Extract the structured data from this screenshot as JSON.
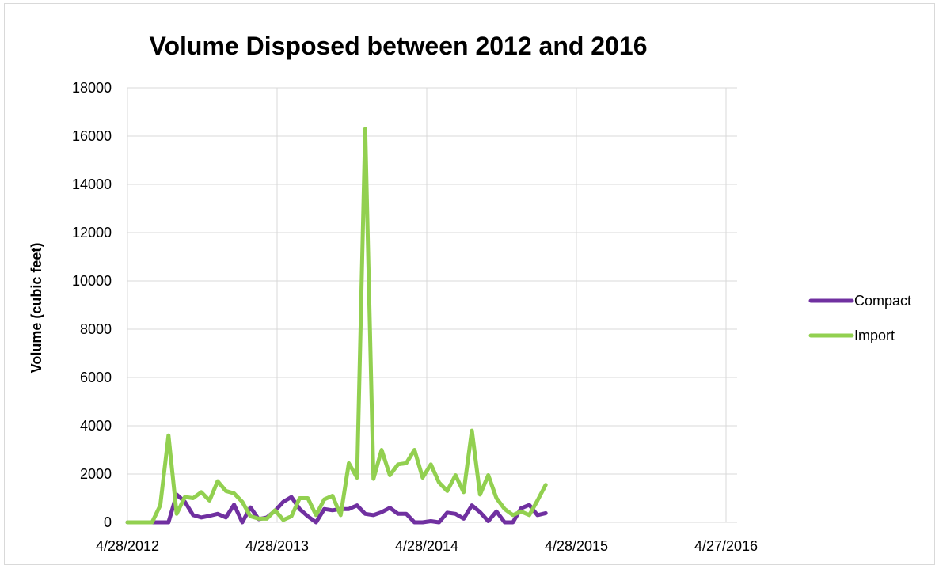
{
  "chart_data": {
    "type": "line",
    "title": "Volume Disposed between 2012 and 2016",
    "xlabel": "",
    "ylabel": "Volume (cubic feet)",
    "ylim": [
      0,
      18000
    ],
    "yticks": [
      0,
      2000,
      4000,
      6000,
      8000,
      10000,
      12000,
      14000,
      16000,
      18000
    ],
    "xlim": [
      "2012-04-28",
      "2016-05-24"
    ],
    "xtick_dates": [
      "2012-04-28",
      "2013-04-28",
      "2014-04-28",
      "2015-04-28",
      "2016-04-27"
    ],
    "xtick_labels": [
      "4/28/2012",
      "4/28/2013",
      "4/28/2014",
      "4/28/2015",
      "4/27/2016"
    ],
    "grid": true,
    "legend": "right",
    "x": [
      "2012-04-28",
      "2012-05-18",
      "2012-06-07",
      "2012-06-27",
      "2012-07-17",
      "2012-08-06",
      "2012-08-26",
      "2012-09-15",
      "2012-10-05",
      "2012-10-25",
      "2012-11-14",
      "2012-12-04",
      "2012-12-24",
      "2013-01-13",
      "2013-02-02",
      "2013-02-22",
      "2013-03-14",
      "2013-04-03",
      "2013-04-23",
      "2013-05-13",
      "2013-06-02",
      "2013-06-22",
      "2013-07-12",
      "2013-08-01",
      "2013-08-21",
      "2013-09-10",
      "2013-09-30",
      "2013-10-20",
      "2013-11-09",
      "2013-11-29",
      "2013-12-19",
      "2014-01-08",
      "2014-01-28",
      "2014-02-17",
      "2014-03-09",
      "2014-03-29",
      "2014-04-18",
      "2014-05-08",
      "2014-05-28",
      "2014-06-17",
      "2014-07-07",
      "2014-07-27",
      "2014-08-16",
      "2014-09-05",
      "2014-09-25",
      "2014-10-15",
      "2014-11-04",
      "2014-11-24",
      "2014-12-14",
      "2015-01-03",
      "2015-01-23",
      "2015-02-12",
      "2015-03-04",
      "2015-03-24",
      "2015-04-13",
      "2015-05-03",
      "2015-05-23",
      "2015-06-12",
      "2015-07-02",
      "2015-07-22",
      "2015-08-11",
      "2015-08-31",
      "2015-09-20",
      "2015-10-10",
      "2015-10-30",
      "2015-11-19",
      "2015-12-09",
      "2015-12-29",
      "2016-01-18",
      "2016-02-07",
      "2016-02-27",
      "2016-03-18",
      "2016-04-07",
      "2016-04-27",
      "2016-05-17"
    ],
    "series": [
      {
        "name": "Compact",
        "color": "#7030a0",
        "values": [
          0,
          0,
          0,
          0,
          0,
          0,
          1150,
          850,
          300,
          200,
          270,
          350,
          200,
          730,
          0,
          620,
          130,
          200,
          480,
          850,
          1050,
          550,
          250,
          0,
          550,
          500,
          550,
          550,
          700,
          350,
          300,
          420,
          600,
          350,
          350,
          0,
          0,
          50,
          0,
          400,
          350,
          150,
          700,
          420,
          50,
          450,
          0,
          0,
          580,
          720,
          300,
          380,
          null,
          null,
          null,
          null,
          null,
          null,
          null,
          null,
          null,
          null,
          null,
          null,
          null,
          null,
          null,
          null,
          null,
          null,
          null,
          null,
          null,
          null,
          null
        ]
      },
      {
        "name": "Import",
        "color": "#92d050",
        "values": [
          0,
          0,
          0,
          0,
          700,
          3600,
          350,
          1050,
          1000,
          1250,
          900,
          1700,
          1300,
          1200,
          850,
          250,
          150,
          150,
          500,
          100,
          250,
          1000,
          1000,
          300,
          950,
          1100,
          300,
          2450,
          1850,
          16300,
          1800,
          3000,
          1950,
          2400,
          2450,
          3000,
          1850,
          2400,
          1650,
          1300,
          1950,
          1250,
          3800,
          1150,
          1950,
          1000,
          550,
          300,
          450,
          300,
          900,
          1550,
          null,
          null,
          null,
          null,
          null,
          null,
          null,
          null,
          null,
          null,
          null,
          null,
          null,
          null,
          null,
          null,
          null,
          null,
          null,
          null,
          null,
          null,
          null
        ]
      }
    ]
  }
}
